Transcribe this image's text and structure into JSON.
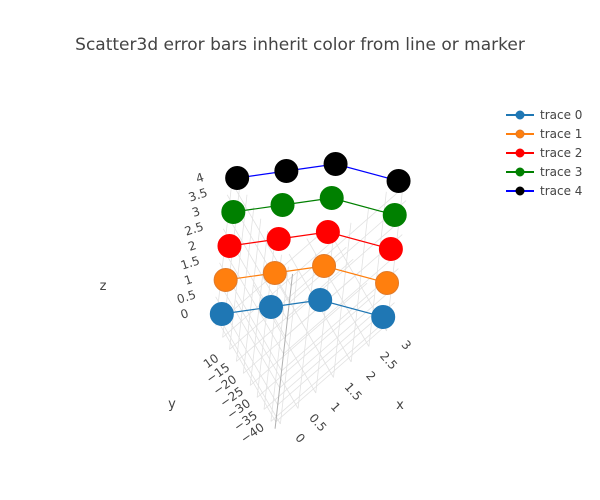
{
  "chart_data": {
    "type": "scatter3d",
    "title": "Scatter3d error bars inherit color from line or marker",
    "axes": {
      "x": {
        "label": "x",
        "ticks": [
          "0",
          "0.5",
          "1",
          "1.5",
          "2",
          "2.5",
          "3"
        ]
      },
      "y": {
        "label": "y",
        "ticks": [
          "−40",
          "−35",
          "−30",
          "−25",
          "−20",
          "−15",
          "10"
        ]
      },
      "z": {
        "label": "z",
        "ticks": [
          "0",
          "0.5",
          "1",
          "1.5",
          "2",
          "2.5",
          "3",
          "3.5",
          "4"
        ]
      }
    },
    "legend_position": "top-right",
    "series": [
      {
        "name": "trace 0",
        "color": "#1f77b4",
        "marker": "#1f77b4",
        "marker_line": "#1f77b4",
        "x": [
          0,
          1,
          2,
          3
        ],
        "y": [
          0,
          -10,
          -20,
          -40
        ],
        "z": [
          0,
          0,
          0,
          0
        ]
      },
      {
        "name": "trace 1",
        "color": "#ff7f0e",
        "marker": "#ff7f0e",
        "marker_line": "#e07a2a",
        "x": [
          0,
          1,
          2,
          3
        ],
        "y": [
          0,
          -10,
          -20,
          -40
        ],
        "z": [
          1,
          1,
          1,
          1
        ]
      },
      {
        "name": "trace 2",
        "color": "#ff0000",
        "marker": "#ff0000",
        "marker_line": "#ff0000",
        "x": [
          0,
          1,
          2,
          3
        ],
        "y": [
          0,
          -10,
          -20,
          -40
        ],
        "z": [
          2,
          2,
          2,
          2
        ]
      },
      {
        "name": "trace 3",
        "color": "#008000",
        "marker": "#008000",
        "marker_line": "#008000",
        "x": [
          0,
          1,
          2,
          3
        ],
        "y": [
          0,
          -10,
          -20,
          -40
        ],
        "z": [
          3,
          3,
          3,
          3
        ]
      },
      {
        "name": "trace 4",
        "color": "#0000ff",
        "marker": "#000000",
        "marker_line": "#000000",
        "x": [
          0,
          1,
          2,
          3
        ],
        "y": [
          0,
          -10,
          -20,
          -40
        ],
        "z": [
          4,
          4,
          4,
          4
        ]
      }
    ]
  }
}
